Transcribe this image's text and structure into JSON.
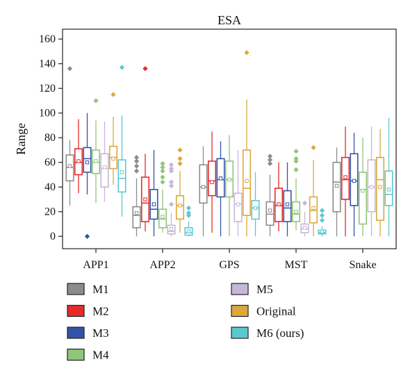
{
  "chart_data": {
    "type": "boxplot",
    "title": "ESA",
    "xlabel": "",
    "ylabel": "Range",
    "ylim": [
      -10,
      168
    ],
    "yticks": [
      0,
      20,
      40,
      60,
      80,
      100,
      120,
      140,
      160
    ],
    "grid": false,
    "legend_position": "bottom",
    "categories": [
      "APP1",
      "APP2",
      "GPS",
      "MST",
      "Snake"
    ],
    "series": [
      {
        "name": "M1",
        "color": "#8c8c8c",
        "boxes": [
          {
            "min": 25,
            "q1": 45,
            "median": 56,
            "mean": 57,
            "q3": 66,
            "max": 78,
            "outliers": [
              136
            ]
          },
          {
            "min": 0,
            "q1": 7,
            "median": 17,
            "mean": 19,
            "q3": 24,
            "max": 47,
            "outliers": [
              53,
              57,
              61,
              64
            ]
          },
          {
            "min": 0,
            "q1": 27,
            "median": 40,
            "mean": 40,
            "q3": 58,
            "max": 73,
            "outliers": []
          },
          {
            "min": 0,
            "q1": 9,
            "median": 18,
            "mean": 21,
            "q3": 28,
            "max": 50,
            "outliers": [
              59,
              62,
              65
            ]
          },
          {
            "min": 0,
            "q1": 20,
            "median": 44,
            "mean": 41,
            "q3": 60,
            "max": 72,
            "outliers": []
          }
        ]
      },
      {
        "name": "M2",
        "color": "#e8292b",
        "boxes": [
          {
            "min": 35,
            "q1": 50,
            "median": 60,
            "mean": 61,
            "q3": 71,
            "max": 95,
            "outliers": []
          },
          {
            "min": 4,
            "q1": 12,
            "median": 27,
            "mean": 30,
            "q3": 48,
            "max": 67,
            "outliers": [
              136
            ]
          },
          {
            "min": 3,
            "q1": 33,
            "median": 45,
            "mean": 44,
            "q3": 61,
            "max": 85,
            "outliers": []
          },
          {
            "min": 4,
            "q1": 12,
            "median": 25,
            "mean": 26,
            "q3": 39,
            "max": 60,
            "outliers": []
          },
          {
            "min": 0,
            "q1": 30,
            "median": 46,
            "mean": 48,
            "q3": 64,
            "max": 89,
            "outliers": []
          }
        ]
      },
      {
        "name": "M3",
        "color": "#3353a6",
        "boxes": [
          {
            "min": 34,
            "q1": 52,
            "median": 63,
            "mean": 60,
            "q3": 72,
            "max": 100,
            "outliers": [
              0
            ]
          },
          {
            "min": 0,
            "q1": 14,
            "median": 22,
            "mean": 26,
            "q3": 38,
            "max": 70,
            "outliers": []
          },
          {
            "min": 0,
            "q1": 32,
            "median": 46,
            "mean": 47,
            "q3": 63,
            "max": 77,
            "outliers": []
          },
          {
            "min": 0,
            "q1": 12,
            "median": 23,
            "mean": 26,
            "q3": 37,
            "max": 60,
            "outliers": []
          },
          {
            "min": 0,
            "q1": 25,
            "median": 45,
            "mean": 45,
            "q3": 67,
            "max": 84,
            "outliers": []
          }
        ]
      },
      {
        "name": "M4",
        "color": "#8fc67a",
        "boxes": [
          {
            "min": 27,
            "q1": 51,
            "median": 60,
            "mean": 61,
            "q3": 70,
            "max": 94,
            "outliers": [
              110
            ]
          },
          {
            "min": 3,
            "q1": 7,
            "median": 14,
            "mean": 16,
            "q3": 22,
            "max": 38,
            "outliers": [
              44,
              48,
              53,
              56,
              59
            ]
          },
          {
            "min": 0,
            "q1": 32,
            "median": 46,
            "mean": 46,
            "q3": 61,
            "max": 82,
            "outliers": []
          },
          {
            "min": 5,
            "q1": 12,
            "median": 18,
            "mean": 20,
            "q3": 28,
            "max": 47,
            "outliers": [
              54,
              61,
              63,
              69
            ]
          },
          {
            "min": 0,
            "q1": 10,
            "median": 38,
            "mean": 37,
            "q3": 52,
            "max": 80,
            "outliers": []
          }
        ]
      },
      {
        "name": "M5",
        "color": "#c6b7da",
        "boxes": [
          {
            "min": 28,
            "q1": 40,
            "median": 55,
            "mean": 56,
            "q3": 67,
            "max": 93,
            "outliers": []
          },
          {
            "min": 0,
            "q1": 2,
            "median": 4,
            "mean": 6,
            "q3": 9,
            "max": 19,
            "outliers": [
              26,
              41,
              44,
              53,
              55,
              58
            ]
          },
          {
            "min": 0,
            "q1": 12,
            "median": 26,
            "mean": 26,
            "q3": 35,
            "max": 70,
            "outliers": []
          },
          {
            "min": 0,
            "q1": 3,
            "median": 6,
            "mean": 7,
            "q3": 10,
            "max": 20,
            "outliers": [
              27
            ]
          },
          {
            "min": 0,
            "q1": 20,
            "median": 40,
            "mean": 40,
            "q3": 62,
            "max": 89,
            "outliers": []
          }
        ]
      },
      {
        "name": "Original",
        "color": "#dca83a",
        "boxes": [
          {
            "min": 42,
            "q1": 55,
            "median": 64,
            "mean": 63,
            "q3": 73,
            "max": 97,
            "outliers": [
              115
            ]
          },
          {
            "min": 3,
            "q1": 14,
            "median": 25,
            "mean": 25,
            "q3": 33,
            "max": 53,
            "outliers": [
              59,
              63,
              70
            ]
          },
          {
            "min": 0,
            "q1": 17,
            "median": 39,
            "mean": 45,
            "q3": 70,
            "max": 111,
            "outliers": [
              149
            ]
          },
          {
            "min": 0,
            "q1": 11,
            "median": 21,
            "mean": 23,
            "q3": 32,
            "max": 62,
            "outliers": [
              72
            ]
          },
          {
            "min": 0,
            "q1": 13,
            "median": 46,
            "mean": 40,
            "q3": 64,
            "max": 87,
            "outliers": []
          }
        ]
      },
      {
        "name": "M6 (ours)",
        "color": "#5cc8d2",
        "boxes": [
          {
            "min": 16,
            "q1": 36,
            "median": 47,
            "mean": 52,
            "q3": 62,
            "max": 98,
            "outliers": [
              137
            ]
          },
          {
            "min": 0,
            "q1": 1,
            "median": 3,
            "mean": 4,
            "q3": 7,
            "max": 12,
            "outliers": [
              17,
              19,
              23
            ]
          },
          {
            "min": 0,
            "q1": 14,
            "median": 23,
            "mean": 23,
            "q3": 29,
            "max": 52,
            "outliers": []
          },
          {
            "min": 0,
            "q1": 2,
            "median": 3,
            "mean": 4,
            "q3": 5,
            "max": 8,
            "outliers": [
              13,
              17,
              21
            ]
          },
          {
            "min": 0,
            "q1": 25,
            "median": 34,
            "mean": 38,
            "q3": 53,
            "max": 96,
            "outliers": []
          }
        ]
      }
    ]
  }
}
